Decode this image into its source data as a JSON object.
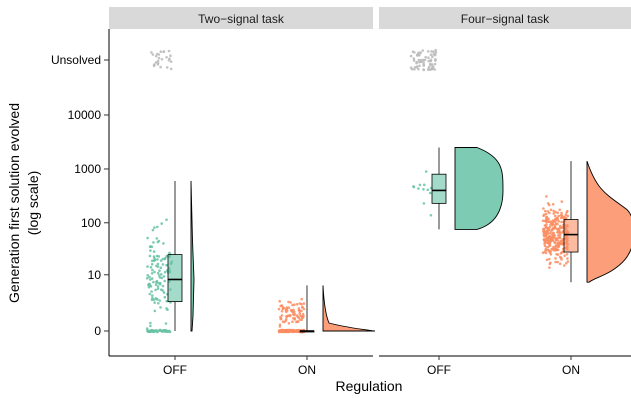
{
  "chart_data": {
    "type": "raincloud",
    "xlabel": "Regulation",
    "ylabel": "Generation first solution evolved",
    "ylabel_note": "(log scale)",
    "y_scale": "log1p",
    "y_ticks": [
      {
        "label": "0",
        "value": 0
      },
      {
        "label": "10",
        "value": 10
      },
      {
        "label": "100",
        "value": 100
      },
      {
        "label": "1000",
        "value": 1000
      },
      {
        "label": "10000",
        "value": 10000
      },
      {
        "label": "Unsolved",
        "value": "unsolved"
      }
    ],
    "categories": [
      "OFF",
      "ON"
    ],
    "grid": false,
    "colors": {
      "OFF": "#66c2a5",
      "ON": "#fc8d62",
      "unsolved": "#bdbdbd",
      "strip_bg": "#d9d9d9"
    },
    "panels": [
      {
        "title": "Two−signal task",
        "groups": [
          {
            "category": "OFF",
            "box": {
              "min": 0,
              "q1": 2.5,
              "median": 8,
              "q3": 25,
              "max": 600
            }
          },
          {
            "category": "ON",
            "box": {
              "min": 0,
              "q1": 0,
              "median": 0,
              "q3": 0,
              "max": 6
            }
          }
        ]
      },
      {
        "title": "Four−signal task",
        "groups": [
          {
            "category": "OFF",
            "box": {
              "min": 75,
              "q1": 230,
              "median": 400,
              "q3": 800,
              "max": 2500
            }
          },
          {
            "category": "ON",
            "box": {
              "min": 7,
              "q1": 28,
              "median": 60,
              "q3": 115,
              "max": 1400
            }
          }
        ]
      }
    ]
  }
}
